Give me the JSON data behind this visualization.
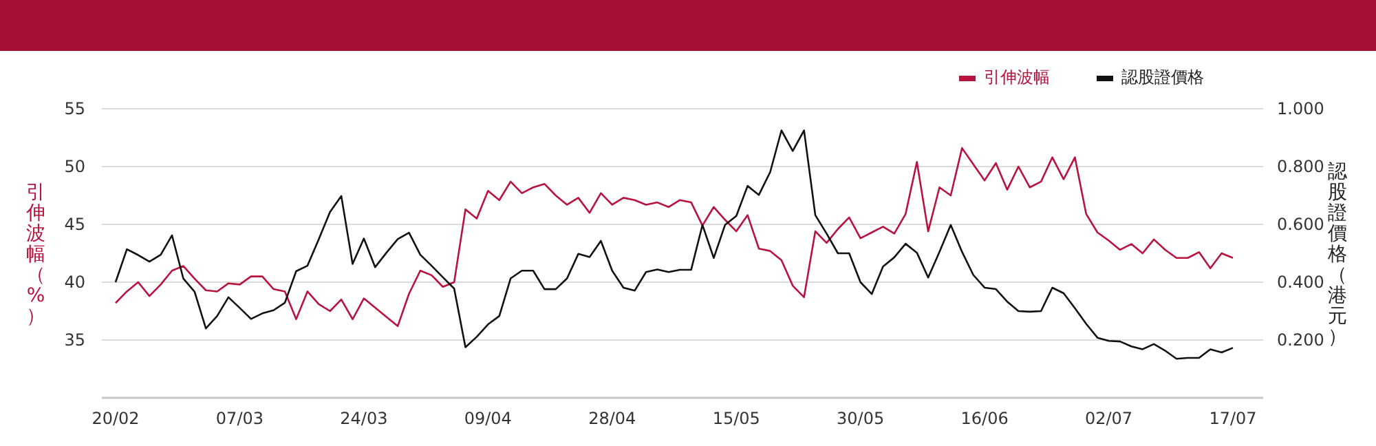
{
  "chart_data": {
    "type": "line",
    "categories": [
      "20/02",
      null,
      null,
      null,
      null,
      null,
      null,
      null,
      null,
      null,
      null,
      "07/03",
      null,
      null,
      null,
      null,
      null,
      null,
      null,
      null,
      null,
      null,
      "24/03",
      null,
      null,
      null,
      null,
      null,
      null,
      null,
      null,
      null,
      null,
      "09/04",
      null,
      null,
      null,
      null,
      null,
      null,
      null,
      null,
      null,
      null,
      "28/04",
      null,
      null,
      null,
      null,
      null,
      null,
      null,
      null,
      null,
      null,
      "15/05",
      null,
      null,
      null,
      null,
      null,
      null,
      null,
      null,
      null,
      null,
      "30/05",
      null,
      null,
      null,
      null,
      null,
      null,
      null,
      null,
      null,
      null,
      "16/06",
      null,
      null,
      null,
      null,
      null,
      null,
      null,
      null,
      null,
      null,
      "02/07",
      null,
      null,
      null,
      null,
      null,
      null,
      null,
      null,
      null,
      null,
      "17/07"
    ],
    "series": [
      {
        "name": "引伸波幅",
        "color": "#b8123e",
        "values": [
          38.2,
          39.2,
          40.0,
          38.8,
          39.8,
          41.0,
          41.4,
          40.3,
          39.3,
          39.2,
          39.9,
          39.8,
          40.5,
          40.5,
          39.4,
          39.2,
          36.8,
          39.2,
          38.1,
          37.5,
          38.5,
          36.8,
          38.6,
          37.8,
          37.0,
          36.2,
          39.0,
          41.0,
          40.6,
          39.6,
          40.0,
          46.3,
          45.5,
          47.9,
          47.1,
          48.7,
          47.7,
          48.2,
          48.5,
          47.5,
          46.7,
          47.3,
          46.0,
          47.7,
          46.7,
          47.3,
          47.1,
          46.7,
          46.9,
          46.5,
          47.1,
          46.9,
          44.9,
          46.5,
          45.4,
          44.4,
          45.8,
          42.9,
          42.7,
          41.9,
          39.7,
          38.7,
          44.4,
          43.4,
          44.6,
          45.6,
          43.8,
          44.3,
          44.8,
          44.2,
          45.9,
          50.4,
          44.4,
          48.2,
          47.5,
          51.6,
          50.2,
          48.8,
          50.3,
          48.0,
          50.0,
          48.2,
          48.7,
          50.8,
          48.9,
          50.8,
          45.9,
          44.3,
          43.6,
          42.8,
          43.3,
          42.5,
          43.7,
          42.8,
          42.1,
          42.1,
          42.6,
          41.2,
          42.5,
          42.1
        ]
      },
      {
        "name": "認股證價格",
        "color": "#111111",
        "axis": "y2",
        "values": [
          0.4,
          0.514,
          0.494,
          0.471,
          0.495,
          0.562,
          0.413,
          0.367,
          0.24,
          0.283,
          0.348,
          0.311,
          0.273,
          0.292,
          0.303,
          0.329,
          0.438,
          0.457,
          0.548,
          0.643,
          0.698,
          0.463,
          0.551,
          0.452,
          0.502,
          0.549,
          0.571,
          0.495,
          0.457,
          0.417,
          0.378,
          0.175,
          0.211,
          0.254,
          0.283,
          0.413,
          0.44,
          0.44,
          0.376,
          0.376,
          0.413,
          0.498,
          0.487,
          0.543,
          0.44,
          0.381,
          0.371,
          0.435,
          0.444,
          0.435,
          0.443,
          0.443,
          0.598,
          0.484,
          0.598,
          0.629,
          0.733,
          0.702,
          0.781,
          0.925,
          0.854,
          0.925,
          0.632,
          0.568,
          0.5,
          0.5,
          0.4,
          0.359,
          0.454,
          0.486,
          0.533,
          0.502,
          0.416,
          0.505,
          0.598,
          0.505,
          0.425,
          0.381,
          0.376,
          0.333,
          0.3,
          0.298,
          0.3,
          0.381,
          0.362,
          0.31,
          0.256,
          0.208,
          0.197,
          0.195,
          0.178,
          0.168,
          0.186,
          0.163,
          0.135,
          0.138,
          0.138,
          0.168,
          0.157,
          0.173
        ]
      }
    ],
    "ylabel": "引伸波幅（%）",
    "y2label": "認股證價格（港元）",
    "ylim": [
      30,
      55
    ],
    "yticks": [
      35,
      40,
      45,
      50,
      55
    ],
    "y2lim": [
      0,
      1
    ],
    "y2ticks": [
      {
        "value": 0.2,
        "label": "0.200"
      },
      {
        "value": 0.4,
        "label": "0.400"
      },
      {
        "value": 0.6,
        "label": "0.600"
      },
      {
        "value": 0.8,
        "label": "0.800"
      },
      {
        "value": 1,
        "label": "1.000"
      }
    ],
    "grid": "y",
    "legend": "top right",
    "marker": "none",
    "line_style": "solid"
  }
}
